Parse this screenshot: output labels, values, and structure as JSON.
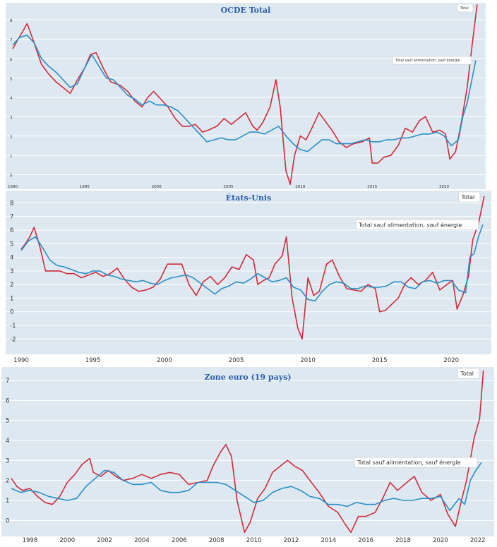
{
  "colors": {
    "total": "#d22b3a",
    "core": "#2a8fc6",
    "plot_bg": "#dde8f1"
  },
  "chart_data": [
    {
      "type": "line",
      "title": "OCDE Total",
      "xlim": [
        1990,
        2022.5
      ],
      "ylim": [
        -0.6,
        8.8
      ],
      "x_ticks": [
        1990,
        1995,
        2000,
        2005,
        2010,
        2015,
        2020
      ],
      "y_ticks": [
        0,
        1,
        2,
        3,
        4,
        5,
        6,
        7,
        8
      ],
      "grid": true,
      "series": [
        {
          "name": "Total",
          "color": "#d22b3a",
          "x": [
            1990,
            1990.3,
            1990.7,
            1991,
            1991.4,
            1992,
            1992.5,
            1993,
            1993.5,
            1994,
            1994.5,
            1995,
            1995.4,
            1995.8,
            1996.3,
            1996.8,
            1997.5,
            1998,
            1998.5,
            1999,
            1999.4,
            1999.8,
            2000.3,
            2000.8,
            2001.3,
            2001.8,
            2002.3,
            2002.7,
            2003.2,
            2003.6,
            2004.2,
            2004.7,
            2005.2,
            2005.7,
            2006.2,
            2006.7,
            2007,
            2007.4,
            2007.9,
            2008.3,
            2008.6,
            2009,
            2009.3,
            2009.6,
            2010,
            2010.4,
            2010.8,
            2011.3,
            2011.7,
            2012.2,
            2012.7,
            2013.2,
            2013.7,
            2014.3,
            2014.8,
            2015,
            2015.4,
            2015.8,
            2016.3,
            2016.8,
            2017.3,
            2017.8,
            2018.3,
            2018.7,
            2019.2,
            2019.7,
            2020.1,
            2020.4,
            2020.8,
            2021.2,
            2021.6,
            2022,
            2022.3
          ],
          "y": [
            6.5,
            6.9,
            7.4,
            7.8,
            7.0,
            5.7,
            5.2,
            4.8,
            4.5,
            4.2,
            4.9,
            5.5,
            6.2,
            6.3,
            5.5,
            4.8,
            4.6,
            4.3,
            3.8,
            3.5,
            4.0,
            4.3,
            3.9,
            3.5,
            2.9,
            2.5,
            2.5,
            2.6,
            2.2,
            2.3,
            2.5,
            2.9,
            2.6,
            2.9,
            3.2,
            2.5,
            2.3,
            2.7,
            3.5,
            4.9,
            3.5,
            0.2,
            -0.5,
            1.0,
            2.0,
            1.8,
            2.4,
            3.2,
            2.8,
            2.3,
            1.7,
            1.4,
            1.6,
            1.7,
            1.9,
            0.6,
            0.6,
            0.9,
            1.0,
            1.5,
            2.4,
            2.2,
            2.8,
            3.0,
            2.2,
            2.3,
            2.1,
            0.8,
            1.2,
            2.7,
            4.5,
            7.0,
            8.8
          ]
        },
        {
          "name": "Total sauf alimentation, sauf énergie",
          "color": "#2a8fc6",
          "x": [
            1990,
            1990.5,
            1991,
            1991.5,
            1992,
            1992.5,
            1993,
            1993.5,
            1994,
            1994.5,
            1995,
            1995.5,
            1996,
            1996.5,
            1997,
            1997.5,
            1998,
            1998.5,
            1999,
            1999.5,
            2000,
            2000.5,
            2001,
            2001.5,
            2002,
            2002.5,
            2003,
            2003.5,
            2004,
            2004.5,
            2005,
            2005.5,
            2006,
            2006.5,
            2007,
            2007.5,
            2008,
            2008.5,
            2009,
            2009.5,
            2010,
            2010.5,
            2011,
            2011.5,
            2012,
            2012.5,
            2013,
            2013.5,
            2014,
            2014.5,
            2015,
            2015.5,
            2016,
            2016.5,
            2017,
            2017.5,
            2018,
            2018.5,
            2019,
            2019.5,
            2020,
            2020.5,
            2021,
            2021.3,
            2021.6,
            2021.9,
            2022.2
          ],
          "y": [
            6.7,
            7.1,
            7.2,
            6.8,
            6.0,
            5.6,
            5.3,
            4.9,
            4.5,
            4.7,
            5.5,
            6.2,
            5.6,
            5.0,
            4.9,
            4.5,
            4.1,
            3.9,
            3.6,
            3.8,
            3.6,
            3.6,
            3.5,
            3.3,
            2.9,
            2.5,
            2.1,
            1.7,
            1.8,
            1.9,
            1.8,
            1.8,
            2.0,
            2.2,
            2.2,
            2.1,
            2.3,
            2.5,
            2.0,
            1.6,
            1.3,
            1.2,
            1.5,
            1.8,
            1.8,
            1.6,
            1.6,
            1.6,
            1.7,
            1.8,
            1.7,
            1.7,
            1.8,
            1.8,
            1.9,
            1.9,
            2.0,
            2.1,
            2.1,
            2.2,
            2.0,
            1.5,
            1.8,
            3.0,
            3.7,
            4.8,
            5.9
          ]
        }
      ],
      "annotations": [
        "Total",
        "Total sauf alimentation, sauf énergie"
      ],
      "legend": "callouts at right end of lines"
    },
    {
      "type": "line",
      "title": "États-Unis",
      "xlim": [
        1990,
        2022.5
      ],
      "ylim": [
        -2.4,
        8.8
      ],
      "x_ticks": [
        1990,
        1995,
        2000,
        2005,
        2010,
        2015,
        2020
      ],
      "y_ticks": [
        -2,
        -1,
        0,
        1,
        2,
        3,
        4,
        5,
        6,
        7,
        8
      ],
      "grid": true,
      "series": [
        {
          "name": "Total",
          "color": "#d22b3a",
          "x": [
            1990,
            1990.3,
            1990.6,
            1990.9,
            1991.3,
            1991.7,
            1992.2,
            1992.7,
            1993.2,
            1993.7,
            1994.2,
            1994.7,
            1995.2,
            1995.7,
            1996.2,
            1996.7,
            1997.2,
            1997.7,
            1998.2,
            1998.7,
            1999.2,
            1999.7,
            2000.2,
            2000.7,
            2001.2,
            2001.7,
            2002.2,
            2002.7,
            2003.2,
            2003.7,
            2004.2,
            2004.7,
            2005.2,
            2005.7,
            2006.2,
            2006.5,
            2006.9,
            2007.3,
            2007.7,
            2008.2,
            2008.5,
            2008.9,
            2009.3,
            2009.6,
            2010,
            2010.4,
            2010.8,
            2011.3,
            2011.7,
            2012.2,
            2012.7,
            2013.2,
            2013.7,
            2014.2,
            2014.7,
            2015,
            2015.4,
            2015.8,
            2016.3,
            2016.8,
            2017.2,
            2017.7,
            2018.2,
            2018.7,
            2019.2,
            2019.7,
            2020.1,
            2020.4,
            2020.8,
            2021.2,
            2021.5,
            2021.9,
            2022.3
          ],
          "y": [
            4.6,
            5.0,
            5.5,
            6.2,
            4.8,
            3.0,
            3.0,
            3.0,
            2.8,
            2.8,
            2.5,
            2.7,
            2.9,
            2.6,
            2.8,
            3.2,
            2.4,
            1.8,
            1.5,
            1.6,
            1.8,
            2.4,
            3.5,
            3.5,
            3.5,
            2.0,
            1.2,
            2.2,
            2.6,
            2.0,
            2.5,
            3.3,
            3.1,
            4.2,
            3.8,
            2.0,
            2.3,
            2.5,
            3.5,
            4.1,
            5.5,
            1.0,
            -1.2,
            -2.0,
            2.5,
            1.2,
            1.5,
            3.5,
            3.8,
            2.6,
            1.7,
            1.6,
            1.5,
            2.0,
            1.7,
            0.0,
            0.1,
            0.5,
            1.0,
            2.1,
            2.5,
            2.0,
            2.3,
            2.9,
            1.6,
            2.0,
            2.3,
            0.2,
            1.2,
            2.6,
            5.3,
            6.5,
            8.5
          ]
        },
        {
          "name": "Total sauf alimentation, sauf énergie",
          "color": "#2a8fc6",
          "x": [
            1990,
            1990.5,
            1991,
            1991.5,
            1992,
            1992.5,
            1993,
            1993.5,
            1994,
            1994.5,
            1995,
            1995.5,
            1996,
            1996.5,
            1997,
            1997.5,
            1998,
            1998.5,
            1999,
            1999.5,
            2000,
            2000.5,
            2001,
            2001.5,
            2002,
            2002.5,
            2003,
            2003.5,
            2004,
            2004.5,
            2005,
            2005.5,
            2006,
            2006.5,
            2007,
            2007.5,
            2008,
            2008.5,
            2009,
            2009.5,
            2010,
            2010.5,
            2011,
            2011.5,
            2012,
            2012.5,
            2013,
            2013.5,
            2014,
            2014.5,
            2015,
            2015.5,
            2016,
            2016.5,
            2017,
            2017.5,
            2018,
            2018.5,
            2019,
            2019.5,
            2020,
            2020.5,
            2021,
            2021.3,
            2021.6,
            2021.9,
            2022.2
          ],
          "y": [
            4.5,
            5.2,
            5.5,
            4.7,
            3.8,
            3.4,
            3.3,
            3.1,
            2.9,
            2.8,
            3.0,
            3.0,
            2.7,
            2.6,
            2.4,
            2.3,
            2.2,
            2.3,
            2.1,
            2.0,
            2.3,
            2.5,
            2.6,
            2.7,
            2.5,
            2.1,
            1.7,
            1.3,
            1.7,
            1.9,
            2.2,
            2.1,
            2.4,
            2.8,
            2.5,
            2.2,
            2.3,
            2.5,
            1.8,
            1.6,
            0.9,
            0.8,
            1.5,
            2.0,
            2.2,
            2.1,
            1.7,
            1.7,
            1.9,
            1.8,
            1.8,
            1.9,
            2.2,
            2.2,
            1.8,
            1.7,
            2.2,
            2.3,
            2.1,
            2.3,
            2.3,
            1.6,
            1.4,
            4.0,
            4.3,
            5.5,
            6.4
          ]
        }
      ],
      "annotations": [
        "Total",
        "Total sauf alimentation, sauf énergie"
      ],
      "legend": "callouts at right end of lines"
    },
    {
      "type": "line",
      "title": "Zone euro (19 pays)",
      "xlim": [
        1997,
        2022.5
      ],
      "ylim": [
        -0.8,
        7.6
      ],
      "x_ticks": [
        1998,
        2000,
        2002,
        2004,
        2006,
        2008,
        2010,
        2012,
        2014,
        2016,
        2018,
        2020,
        2022
      ],
      "y_ticks": [
        0,
        1,
        2,
        3,
        4,
        5,
        6,
        7
      ],
      "grid": true,
      "series": [
        {
          "name": "Total",
          "color": "#d22b3a",
          "x": [
            1997,
            1997.3,
            1997.6,
            1998,
            1998.4,
            1998.8,
            1999.2,
            1999.6,
            2000,
            2000.4,
            2000.8,
            2001.2,
            2001.4,
            2001.8,
            2002.2,
            2002.6,
            2003,
            2003.5,
            2004,
            2004.5,
            2005,
            2005.5,
            2006,
            2006.5,
            2007,
            2007.5,
            2007.8,
            2008.2,
            2008.5,
            2008.8,
            2009.1,
            2009.5,
            2009.8,
            2010.2,
            2010.6,
            2011,
            2011.4,
            2011.8,
            2012.2,
            2012.6,
            2013,
            2013.5,
            2014,
            2014.5,
            2014.9,
            2015.2,
            2015.6,
            2016,
            2016.5,
            2016.9,
            2017.3,
            2017.7,
            2018.2,
            2018.6,
            2019,
            2019.5,
            2020,
            2020.4,
            2020.8,
            2021.1,
            2021.4,
            2021.8,
            2022.1,
            2022.3
          ],
          "y": [
            2.1,
            1.7,
            1.5,
            1.6,
            1.2,
            0.9,
            0.8,
            1.2,
            1.9,
            2.3,
            2.8,
            3.1,
            2.4,
            2.2,
            2.5,
            2.2,
            2.0,
            2.1,
            2.3,
            2.1,
            2.3,
            2.4,
            2.3,
            1.8,
            1.9,
            2.0,
            2.7,
            3.4,
            3.8,
            3.2,
            1.0,
            -0.6,
            -0.1,
            1.1,
            1.6,
            2.4,
            2.7,
            3.0,
            2.7,
            2.5,
            2.0,
            1.4,
            0.7,
            0.4,
            -0.2,
            -0.6,
            0.2,
            0.2,
            0.4,
            1.1,
            1.9,
            1.5,
            1.9,
            2.2,
            1.4,
            1.0,
            1.3,
            0.3,
            -0.3,
            0.9,
            2.0,
            4.1,
            5.1,
            7.5
          ]
        },
        {
          "name": "Total sauf alimentation, sauf énergie",
          "color": "#2a8fc6",
          "x": [
            1997,
            1997.5,
            1998,
            1998.5,
            1999,
            1999.5,
            2000,
            2000.5,
            2001,
            2001.5,
            2002,
            2002.5,
            2003,
            2003.5,
            2004,
            2004.5,
            2005,
            2005.5,
            2006,
            2006.5,
            2007,
            2007.5,
            2008,
            2008.5,
            2009,
            2009.5,
            2010,
            2010.5,
            2011,
            2011.5,
            2012,
            2012.5,
            2013,
            2013.5,
            2014,
            2014.5,
            2015,
            2015.5,
            2016,
            2016.5,
            2017,
            2017.5,
            2018,
            2018.5,
            2019,
            2019.5,
            2020,
            2020.5,
            2021,
            2021.3,
            2021.6,
            2021.9,
            2022.2
          ],
          "y": [
            1.6,
            1.4,
            1.5,
            1.4,
            1.2,
            1.1,
            1.0,
            1.1,
            1.7,
            2.1,
            2.5,
            2.4,
            2.0,
            1.8,
            1.8,
            1.9,
            1.5,
            1.4,
            1.4,
            1.5,
            1.9,
            1.9,
            1.9,
            1.8,
            1.5,
            1.2,
            0.9,
            1.0,
            1.4,
            1.6,
            1.7,
            1.5,
            1.2,
            1.1,
            0.8,
            0.8,
            0.7,
            0.9,
            0.8,
            0.8,
            1.0,
            1.1,
            1.0,
            1.0,
            1.1,
            1.1,
            1.2,
            0.5,
            1.1,
            0.8,
            2.0,
            2.5,
            2.9
          ]
        }
      ],
      "annotations": [
        "Total",
        "Total sauf alimentation, sauf énergie"
      ],
      "legend": "callouts at right end of lines"
    }
  ]
}
